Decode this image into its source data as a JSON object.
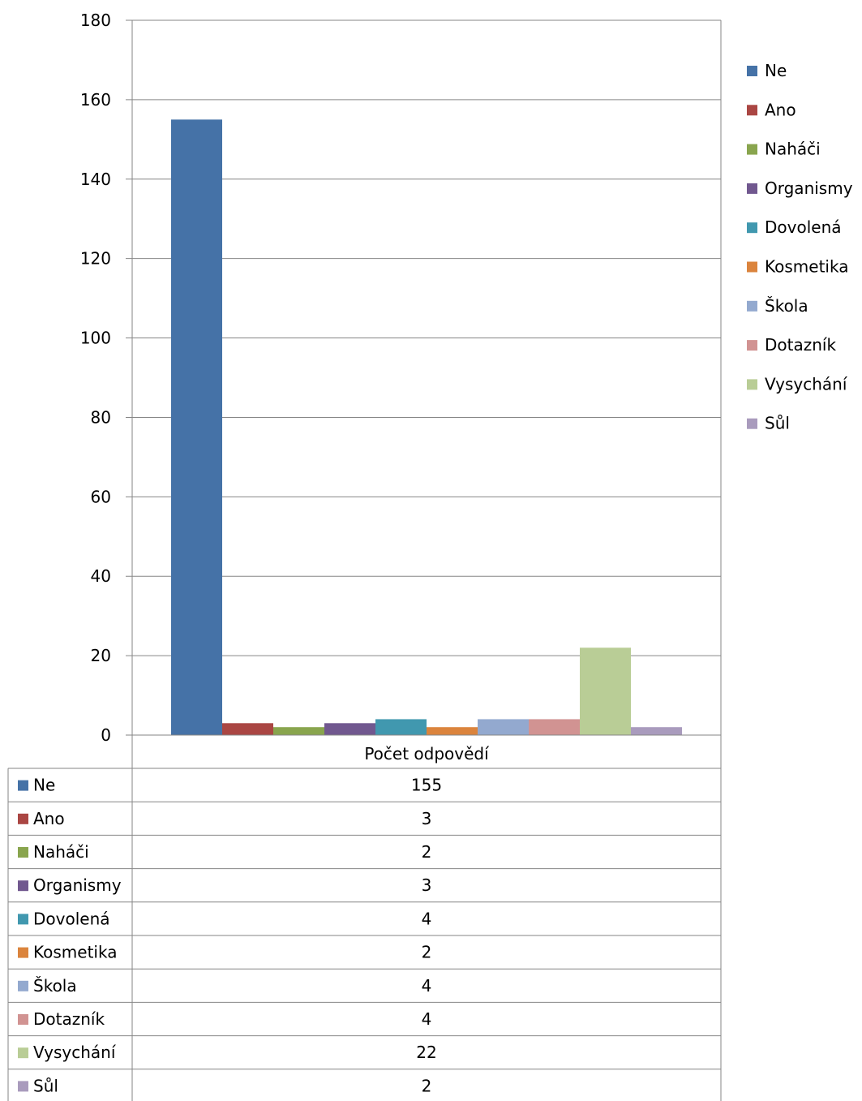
{
  "chart_data": {
    "type": "bar",
    "category": "Počet odpovědí",
    "series": [
      {
        "name": "Ne",
        "values": [
          155
        ],
        "color": "#4572A7"
      },
      {
        "name": "Ano",
        "values": [
          3
        ],
        "color": "#AA4643"
      },
      {
        "name": "Naháči",
        "values": [
          2
        ],
        "color": "#89A54E"
      },
      {
        "name": "Organismy",
        "values": [
          3
        ],
        "color": "#71588F"
      },
      {
        "name": "Dovolená",
        "values": [
          4
        ],
        "color": "#4198AF"
      },
      {
        "name": "Kosmetika",
        "values": [
          2
        ],
        "color": "#DB843D"
      },
      {
        "name": "Škola",
        "values": [
          4
        ],
        "color": "#93A9CF"
      },
      {
        "name": "Dotazník",
        "values": [
          4
        ],
        "color": "#D19392"
      },
      {
        "name": "Vysychání",
        "values": [
          22
        ],
        "color": "#B9CD96"
      },
      {
        "name": "Sůl",
        "values": [
          2
        ],
        "color": "#A99BBD"
      }
    ],
    "ylim": [
      0,
      180
    ],
    "yticks": [
      0,
      20,
      40,
      60,
      80,
      100,
      120,
      140,
      160,
      180
    ],
    "grid": true,
    "legend": "right",
    "data_table": true
  }
}
